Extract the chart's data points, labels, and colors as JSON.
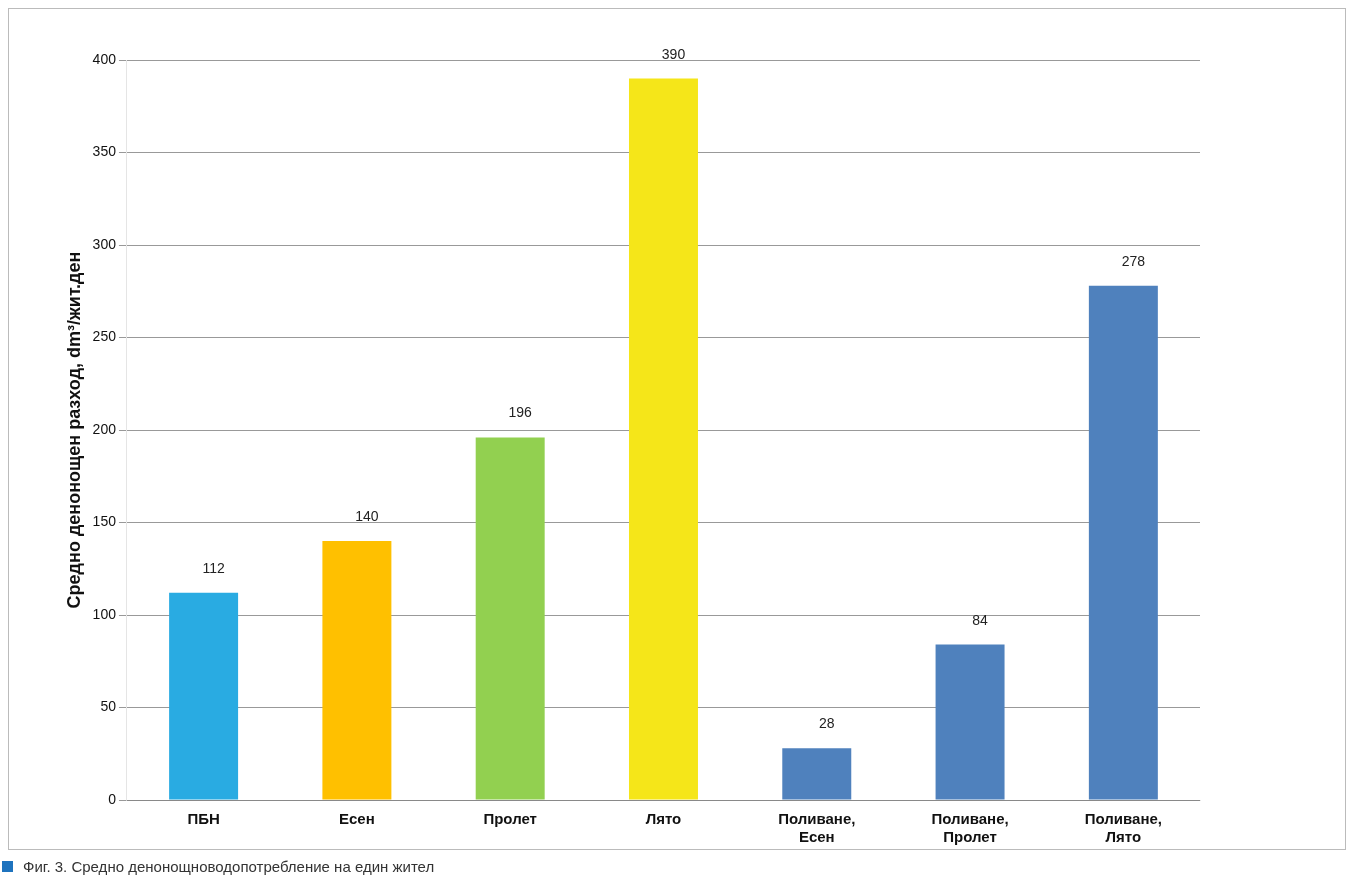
{
  "chart_data": {
    "type": "bar",
    "ylabel": "Средно денонощен разход, dm³/жит.ден",
    "categories": [
      "ПБН",
      "Есен",
      "Пролет",
      "Лято",
      "Поливане, Есен",
      "Поливане, Пролет",
      "Поливане, Лято"
    ],
    "values": [
      112,
      140,
      196,
      390,
      28,
      84,
      278
    ],
    "colors": [
      "#29abe2",
      "#ffc000",
      "#92d050",
      "#f5e619",
      "#4f81bd",
      "#4f81bd",
      "#4f81bd"
    ],
    "ylim": [
      0,
      400
    ],
    "yticks": [
      0,
      50,
      100,
      150,
      200,
      250,
      300,
      350,
      400
    ],
    "grid": "y",
    "data_labels": true,
    "legend": false,
    "annotations": [
      "Фиг. 3. Средно денонощноводопотребление на един жител"
    ]
  }
}
